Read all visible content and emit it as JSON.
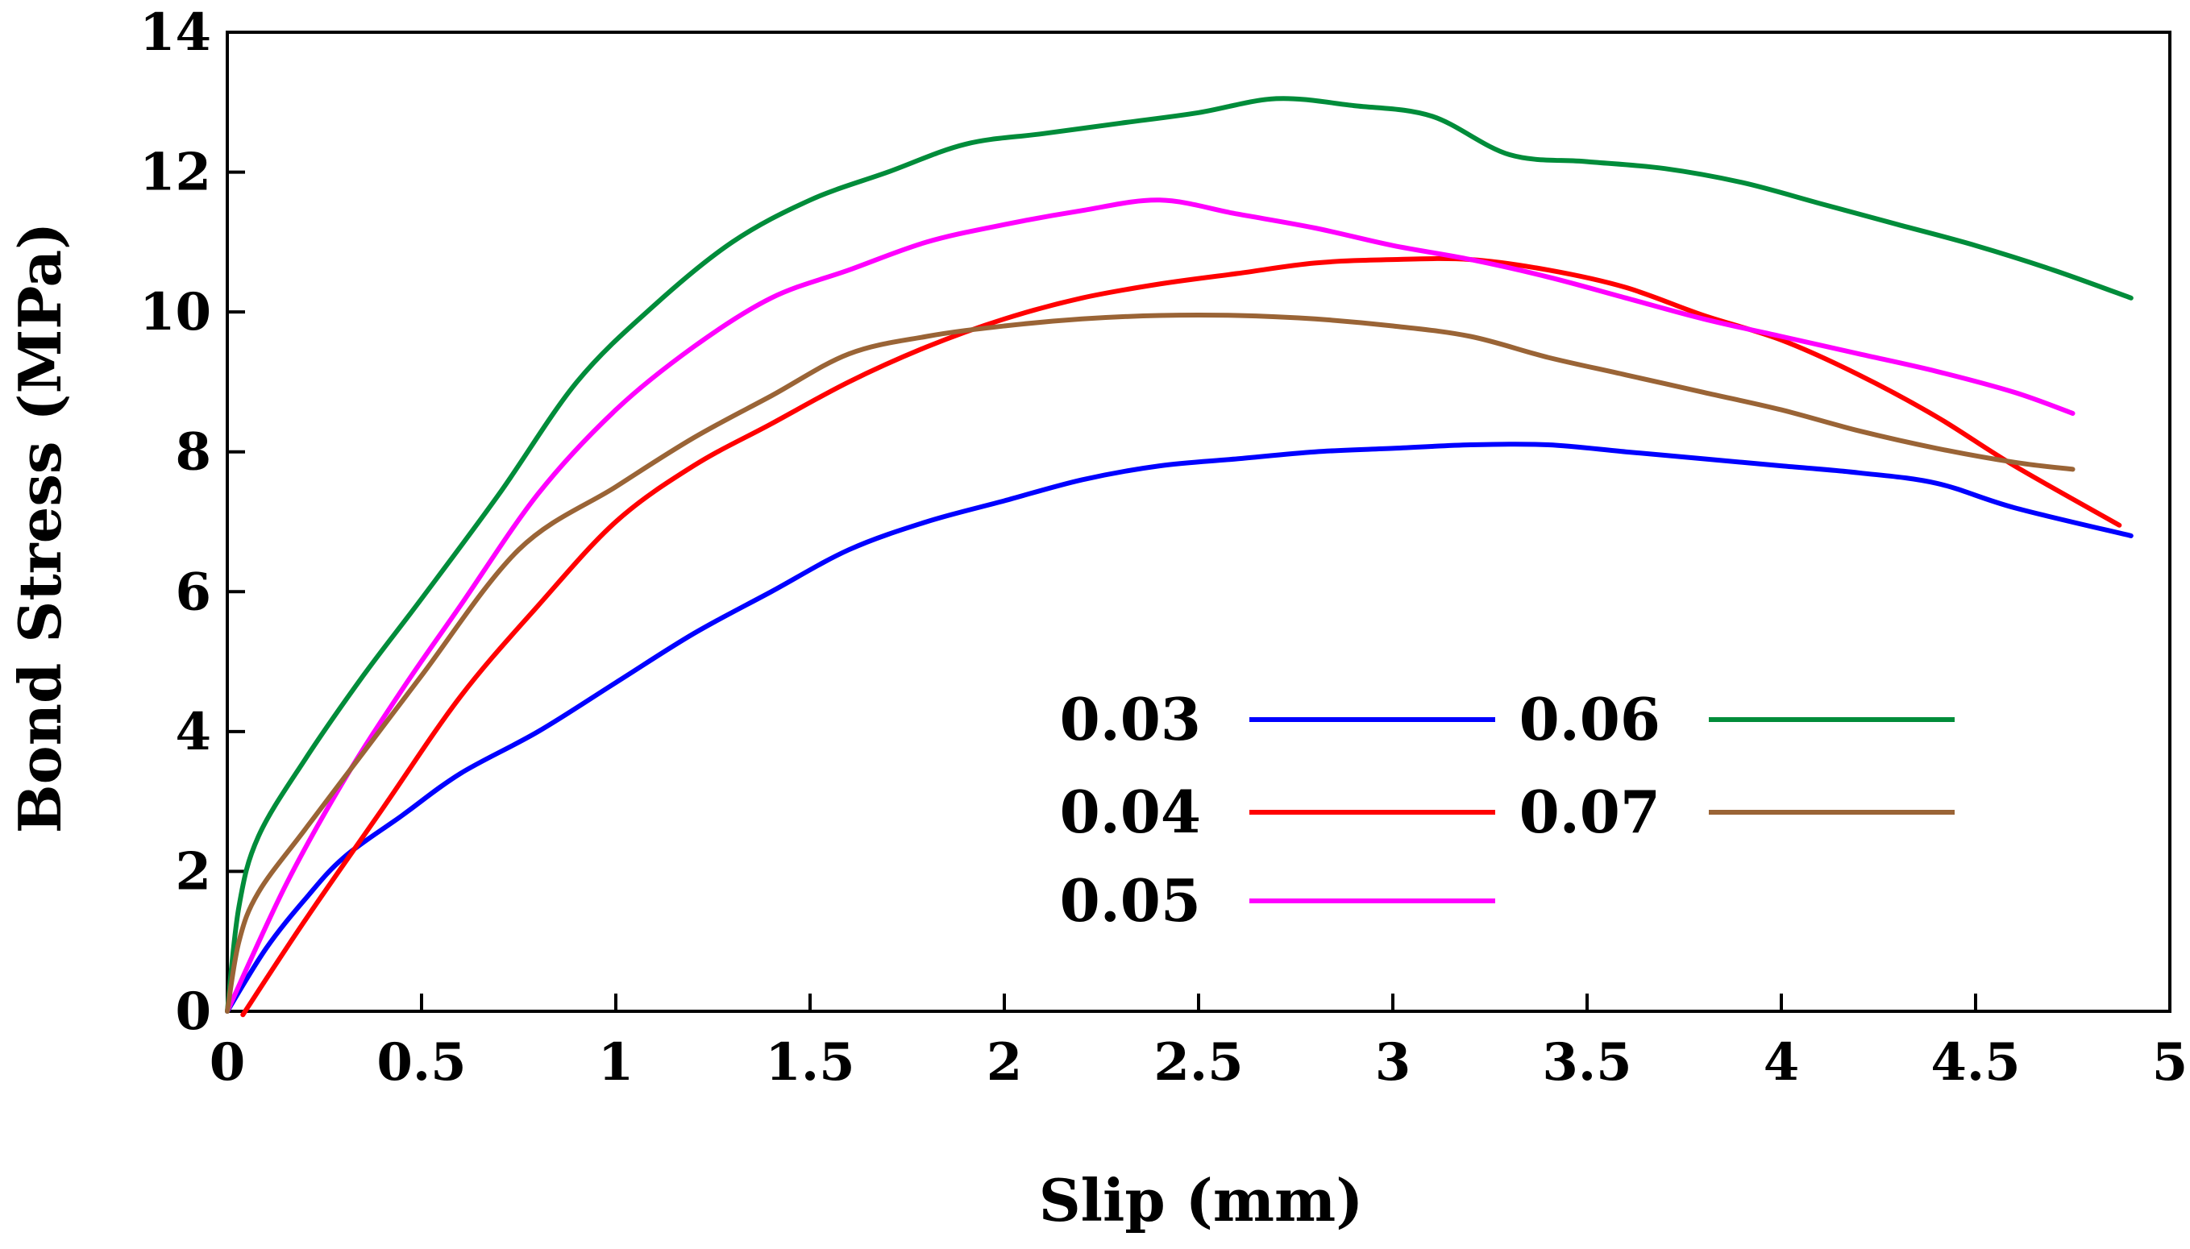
{
  "chart_data": {
    "type": "line",
    "title": "",
    "xlabel": "Slip (mm)",
    "ylabel": "Bond Stress (MPa)",
    "xlim": [
      0,
      5
    ],
    "ylim": [
      0,
      14
    ],
    "xticks": [
      "0",
      "0.5",
      "1",
      "1.5",
      "2",
      "2.5",
      "3",
      "3.5",
      "4",
      "4.5",
      "5"
    ],
    "yticks": [
      "0",
      "2",
      "4",
      "6",
      "8",
      "10",
      "12",
      "14"
    ],
    "grid": false,
    "legend": "bottom-right",
    "series": [
      {
        "name": "0.03",
        "color": "#0000ff",
        "points": [
          [
            0.0,
            0.0
          ],
          [
            0.1,
            0.9
          ],
          [
            0.2,
            1.6
          ],
          [
            0.3,
            2.2
          ],
          [
            0.45,
            2.8
          ],
          [
            0.6,
            3.4
          ],
          [
            0.8,
            4.0
          ],
          [
            1.0,
            4.7
          ],
          [
            1.2,
            5.4
          ],
          [
            1.4,
            6.0
          ],
          [
            1.6,
            6.6
          ],
          [
            1.8,
            7.0
          ],
          [
            2.0,
            7.3
          ],
          [
            2.2,
            7.6
          ],
          [
            2.4,
            7.8
          ],
          [
            2.6,
            7.9
          ],
          [
            2.8,
            8.0
          ],
          [
            3.0,
            8.05
          ],
          [
            3.2,
            8.1
          ],
          [
            3.4,
            8.1
          ],
          [
            3.6,
            8.0
          ],
          [
            3.8,
            7.9
          ],
          [
            4.0,
            7.8
          ],
          [
            4.2,
            7.7
          ],
          [
            4.4,
            7.55
          ],
          [
            4.6,
            7.2
          ],
          [
            4.9,
            6.8
          ]
        ]
      },
      {
        "name": "0.04",
        "color": "#ff0000",
        "points": [
          [
            0.04,
            -0.05
          ],
          [
            0.2,
            1.3
          ],
          [
            0.4,
            2.9
          ],
          [
            0.6,
            4.5
          ],
          [
            0.8,
            5.8
          ],
          [
            1.0,
            7.0
          ],
          [
            1.2,
            7.8
          ],
          [
            1.4,
            8.4
          ],
          [
            1.6,
            9.0
          ],
          [
            1.8,
            9.5
          ],
          [
            2.0,
            9.9
          ],
          [
            2.2,
            10.2
          ],
          [
            2.4,
            10.4
          ],
          [
            2.6,
            10.55
          ],
          [
            2.8,
            10.7
          ],
          [
            3.0,
            10.75
          ],
          [
            3.2,
            10.75
          ],
          [
            3.4,
            10.6
          ],
          [
            3.6,
            10.35
          ],
          [
            3.8,
            9.95
          ],
          [
            4.0,
            9.6
          ],
          [
            4.2,
            9.1
          ],
          [
            4.4,
            8.5
          ],
          [
            4.6,
            7.8
          ],
          [
            4.87,
            6.95
          ]
        ]
      },
      {
        "name": "0.05",
        "color": "#ff00ff",
        "points": [
          [
            0.0,
            0.0
          ],
          [
            0.15,
            1.8
          ],
          [
            0.3,
            3.3
          ],
          [
            0.45,
            4.6
          ],
          [
            0.6,
            5.8
          ],
          [
            0.8,
            7.4
          ],
          [
            1.0,
            8.6
          ],
          [
            1.2,
            9.5
          ],
          [
            1.4,
            10.2
          ],
          [
            1.6,
            10.6
          ],
          [
            1.8,
            11.0
          ],
          [
            2.0,
            11.25
          ],
          [
            2.2,
            11.45
          ],
          [
            2.4,
            11.6
          ],
          [
            2.6,
            11.4
          ],
          [
            2.8,
            11.2
          ],
          [
            3.0,
            10.95
          ],
          [
            3.2,
            10.75
          ],
          [
            3.4,
            10.5
          ],
          [
            3.6,
            10.2
          ],
          [
            3.8,
            9.9
          ],
          [
            4.0,
            9.65
          ],
          [
            4.2,
            9.4
          ],
          [
            4.4,
            9.15
          ],
          [
            4.6,
            8.85
          ],
          [
            4.75,
            8.55
          ]
        ]
      },
      {
        "name": "0.06",
        "color": "#008c3a",
        "points": [
          [
            0.0,
            0.0
          ],
          [
            0.03,
            1.5
          ],
          [
            0.08,
            2.5
          ],
          [
            0.2,
            3.6
          ],
          [
            0.35,
            4.8
          ],
          [
            0.5,
            5.9
          ],
          [
            0.7,
            7.4
          ],
          [
            0.9,
            9.0
          ],
          [
            1.1,
            10.1
          ],
          [
            1.3,
            11.0
          ],
          [
            1.5,
            11.6
          ],
          [
            1.7,
            12.0
          ],
          [
            1.9,
            12.4
          ],
          [
            2.1,
            12.55
          ],
          [
            2.3,
            12.7
          ],
          [
            2.5,
            12.85
          ],
          [
            2.7,
            13.05
          ],
          [
            2.9,
            12.95
          ],
          [
            3.1,
            12.8
          ],
          [
            3.3,
            12.25
          ],
          [
            3.5,
            12.15
          ],
          [
            3.7,
            12.05
          ],
          [
            3.9,
            11.85
          ],
          [
            4.1,
            11.55
          ],
          [
            4.3,
            11.25
          ],
          [
            4.5,
            10.95
          ],
          [
            4.7,
            10.6
          ],
          [
            4.9,
            10.2
          ]
        ]
      },
      {
        "name": "0.07",
        "color": "#9a6436",
        "points": [
          [
            0.0,
            0.0
          ],
          [
            0.03,
            1.0
          ],
          [
            0.08,
            1.7
          ],
          [
            0.2,
            2.6
          ],
          [
            0.35,
            3.7
          ],
          [
            0.5,
            4.8
          ],
          [
            0.75,
            6.6
          ],
          [
            1.0,
            7.5
          ],
          [
            1.2,
            8.2
          ],
          [
            1.4,
            8.8
          ],
          [
            1.6,
            9.4
          ],
          [
            1.8,
            9.65
          ],
          [
            2.0,
            9.8
          ],
          [
            2.2,
            9.9
          ],
          [
            2.4,
            9.95
          ],
          [
            2.6,
            9.95
          ],
          [
            2.8,
            9.9
          ],
          [
            3.0,
            9.8
          ],
          [
            3.2,
            9.65
          ],
          [
            3.4,
            9.35
          ],
          [
            3.6,
            9.1
          ],
          [
            3.8,
            8.85
          ],
          [
            4.0,
            8.6
          ],
          [
            4.2,
            8.3
          ],
          [
            4.4,
            8.05
          ],
          [
            4.6,
            7.85
          ],
          [
            4.75,
            7.75
          ]
        ]
      }
    ]
  }
}
